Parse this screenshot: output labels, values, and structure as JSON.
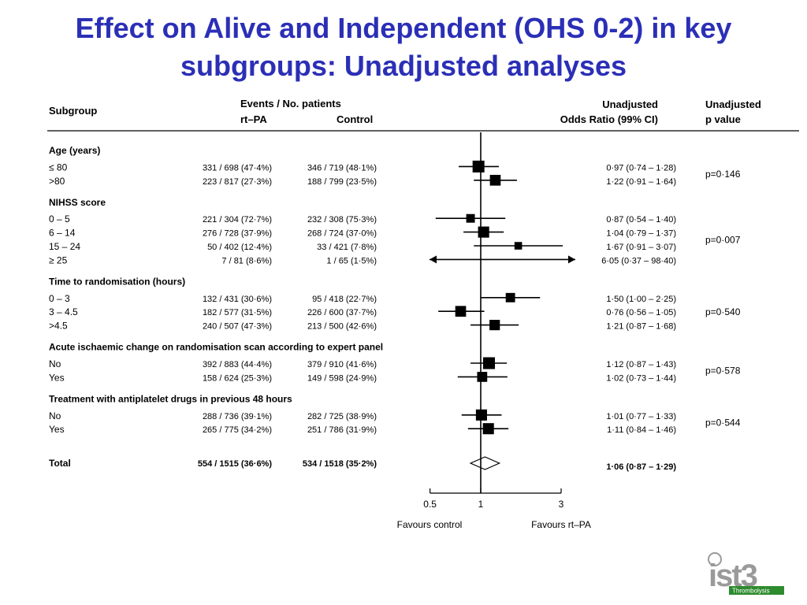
{
  "title": {
    "line1": "Effect on Alive and Independent (OHS 0-2) in key",
    "line2": "subgroups: Unadjusted analyses"
  },
  "headers": {
    "subgroup": "Subgroup",
    "events": "Events / No. patients",
    "rtpa": "rt–PA",
    "control": "Control",
    "or_line1": "Unadjusted",
    "or_line2": "Odds Ratio (99% CI)",
    "p_line1": "Unadjusted",
    "p_line2": "p value"
  },
  "chart_data": {
    "type": "forest",
    "x_scale": "log",
    "xlim": [
      0.5,
      3
    ],
    "x_ticks": [
      "0.5",
      "1",
      "3"
    ],
    "x_tick_values": [
      0.5,
      1,
      3
    ],
    "xlabel_left": "Favours control",
    "xlabel_right": "Favours rt–PA",
    "groups": [
      {
        "heading": "Age (years)",
        "p": "p=0·146",
        "rows": [
          {
            "label": "≤ 80",
            "rtpa": "331 / 698  (47·4%)",
            "control": "346 / 719  (48·1%)",
            "ci_text": "0·97 (0·74 – 1·28)",
            "or": 0.97,
            "lo": 0.74,
            "hi": 1.28,
            "weight": 1.0
          },
          {
            "label": ">80",
            "rtpa": "223 / 817  (27·3%)",
            "control": "188 / 799  (23·5%)",
            "ci_text": "1·22 (0·91 – 1·64)",
            "or": 1.22,
            "lo": 0.91,
            "hi": 1.64,
            "weight": 0.85
          }
        ]
      },
      {
        "heading": "NIHSS score",
        "p": "p=0·007",
        "rows": [
          {
            "label": "0 – 5",
            "rtpa": "221 / 304  (72·7%)",
            "control": "232 / 308  (75·3%)",
            "ci_text": "0·87 (0·54 – 1·40)",
            "or": 0.87,
            "lo": 0.54,
            "hi": 1.4,
            "weight": 0.55
          },
          {
            "label": "6 – 14",
            "rtpa": "276 / 728  (37·9%)",
            "control": "268 / 724  (37·0%)",
            "ci_text": "1·04 (0·79 – 1·37)",
            "or": 1.04,
            "lo": 0.79,
            "hi": 1.37,
            "weight": 0.9
          },
          {
            "label": "15 – 24",
            "rtpa": "50 / 402  (12·4%)",
            "control": "33 / 421  (7·8%)",
            "ci_text": "1·67 (0·91 – 3·07)",
            "or": 1.67,
            "lo": 0.91,
            "hi": 3.07,
            "weight": 0.4
          },
          {
            "label": "≥ 25",
            "rtpa": "7 / 81   (8·6%)",
            "control": "1 / 65   (1·5%)",
            "ci_text": "6·05 (0·37 – 98·40)",
            "or": 6.05,
            "lo": 0.37,
            "hi": 98.4,
            "weight": 0.0
          }
        ]
      },
      {
        "heading": "Time to randomisation (hours)",
        "p": "p=0·540",
        "rows": [
          {
            "label": "0 – 3",
            "rtpa": "132 / 431  (30·6%)",
            "control": "95 / 418  (22·7%)",
            "ci_text": "1·50 (1·00 – 2·25)",
            "or": 1.5,
            "lo": 1.0,
            "hi": 2.25,
            "weight": 0.65
          },
          {
            "label": "3 – 4.5",
            "rtpa": "182 / 577  (31·5%)",
            "control": "226 / 600  (37·7%)",
            "ci_text": "0·76 (0·56 – 1·05)",
            "or": 0.76,
            "lo": 0.56,
            "hi": 1.05,
            "weight": 0.85
          },
          {
            "label": ">4.5",
            "rtpa": "240 / 507  (47·3%)",
            "control": "213 / 500  (42·6%)",
            "ci_text": "1·21 (0·87 – 1·68)",
            "or": 1.21,
            "lo": 0.87,
            "hi": 1.68,
            "weight": 0.8
          }
        ]
      },
      {
        "heading": "Acute ischaemic change on randomisation scan according to expert panel",
        "p": "p=0·578",
        "rows": [
          {
            "label": "No",
            "rtpa": "392 / 883  (44·4%)",
            "control": "379 / 910  (41·6%)",
            "ci_text": "1·12 (0·87 – 1·43)",
            "or": 1.12,
            "lo": 0.87,
            "hi": 1.43,
            "weight": 1.0
          },
          {
            "label": "Yes",
            "rtpa": "158 / 624  (25·3%)",
            "control": "149 / 598  (24·9%)",
            "ci_text": "1·02 (0·73 – 1·44)",
            "or": 1.02,
            "lo": 0.73,
            "hi": 1.44,
            "weight": 0.75
          }
        ]
      },
      {
        "heading": "Treatment with antiplatelet drugs in previous 48 hours",
        "p": "p=0·544",
        "rows": [
          {
            "label": "No",
            "rtpa": "288 / 736  (39·1%)",
            "control": "282 / 725  (38·9%)",
            "ci_text": "1·01 (0·77 – 1·33)",
            "or": 1.01,
            "lo": 0.77,
            "hi": 1.33,
            "weight": 0.9
          },
          {
            "label": "Yes",
            "rtpa": "265 / 775  (34·2%)",
            "control": "251 / 786  (31·9%)",
            "ci_text": "1·11 (0·84 – 1·46)",
            "or": 1.11,
            "lo": 0.84,
            "hi": 1.46,
            "weight": 0.9
          }
        ]
      }
    ],
    "total": {
      "label": "Total",
      "rtpa": "554 / 1515 (36·6%)",
      "control": "534 / 1518 (35·2%)",
      "ci_text": "1·06 (0·87 – 1·29)",
      "or": 1.06,
      "lo": 0.87,
      "hi": 1.29
    }
  },
  "logo": {
    "text": "ist3",
    "tagline": "Thrombolysis",
    "color_grey": "#9a9a9a",
    "color_green": "#2e8b2e"
  },
  "colors": {
    "title": "#2b2fb6"
  }
}
